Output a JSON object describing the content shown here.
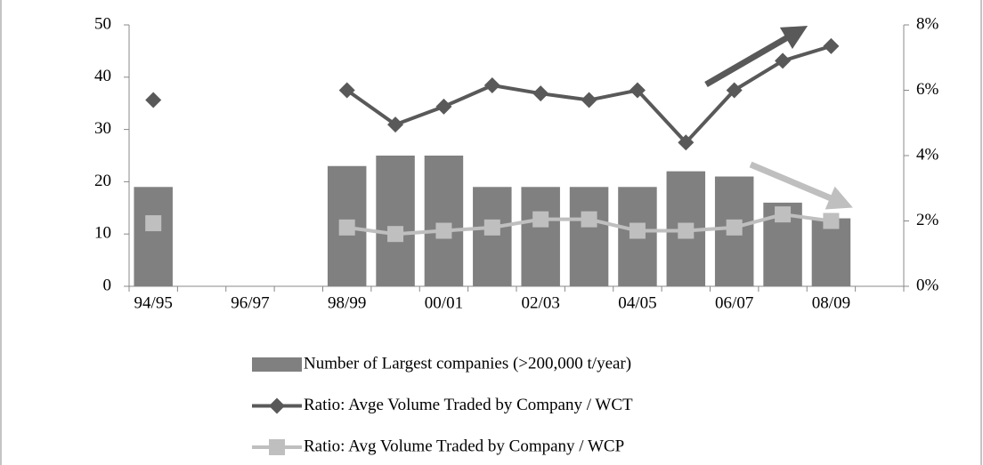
{
  "chart_data": {
    "type": "bar-line",
    "categories": [
      "94/95",
      null,
      "96/97",
      null,
      "98/99",
      null,
      "00/01",
      null,
      "02/03",
      null,
      "04/05",
      null,
      "06/07",
      null,
      "08/09",
      null
    ],
    "series": [
      {
        "name": "Number of Largest companies (>200,000 t/year)",
        "type": "bar",
        "color": "#808080",
        "axis": "y",
        "values": [
          19,
          null,
          null,
          null,
          23,
          25,
          25,
          19,
          19,
          19,
          19,
          22,
          21,
          16,
          13,
          null
        ]
      },
      {
        "name": "Ratio: Avge Volume Traded by Company / WCT",
        "type": "line",
        "marker": "diamond",
        "color": "#595959",
        "axis": "y2",
        "values": [
          5.7,
          null,
          null,
          null,
          6.0,
          4.95,
          5.5,
          6.15,
          5.9,
          5.7,
          6.0,
          4.4,
          6.0,
          6.9,
          7.35,
          null
        ]
      },
      {
        "name": "Ratio: Avg Volume Traded by Company / WCP",
        "type": "line",
        "marker": "square",
        "color": "#bfbfbf",
        "axis": "y2",
        "values": [
          1.93,
          null,
          null,
          null,
          1.8,
          1.6,
          1.7,
          1.8,
          2.05,
          2.05,
          1.7,
          1.7,
          1.8,
          2.2,
          2.0,
          null
        ]
      }
    ],
    "ylim": [
      0,
      50
    ],
    "yticks": [
      0,
      10,
      20,
      30,
      40,
      50
    ],
    "y2lim": [
      0,
      8
    ],
    "y2ticks": [
      {
        "value": 0,
        "label": "0%"
      },
      {
        "value": 2,
        "label": "2%"
      },
      {
        "value": 4,
        "label": "4%"
      },
      {
        "value": 6,
        "label": "6%"
      },
      {
        "value": 8,
        "label": "8%"
      }
    ],
    "legend": "bottom"
  }
}
